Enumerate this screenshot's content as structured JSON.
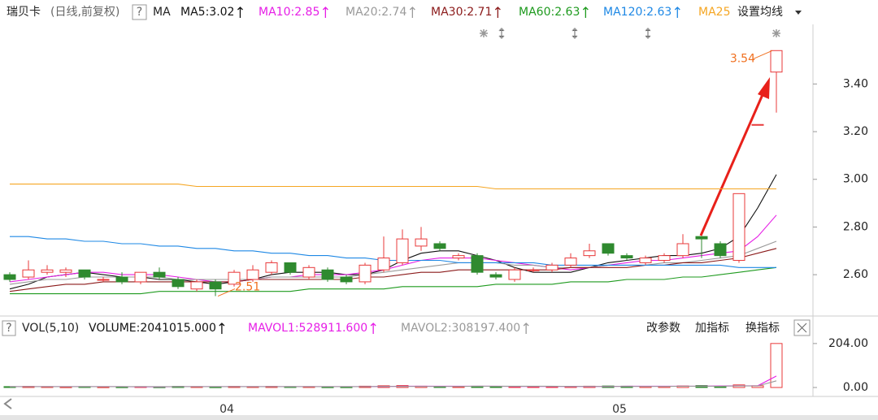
{
  "header": {
    "stock": "瑞贝卡",
    "mode": "(日线,前复权)",
    "help": "?",
    "indicator": "MA",
    "settings": "设置均线"
  },
  "chart_data": [
    {
      "type": "candlestick",
      "categories": [
        null,
        null,
        null,
        null,
        null,
        null,
        null,
        null,
        null,
        null,
        null,
        null,
        "04",
        null,
        null,
        null,
        null,
        null,
        null,
        null,
        null,
        null,
        null,
        null,
        null,
        null,
        null,
        null,
        null,
        null,
        null,
        null,
        null,
        "05",
        null,
        null,
        null,
        null,
        null,
        null,
        null,
        null
      ],
      "open": [
        2.6,
        2.59,
        2.61,
        2.61,
        2.62,
        2.58,
        2.59,
        2.57,
        2.61,
        2.58,
        2.54,
        2.57,
        2.56,
        2.58,
        2.61,
        2.65,
        2.59,
        2.62,
        2.59,
        2.57,
        2.62,
        2.65,
        2.72,
        2.73,
        2.67,
        2.68,
        2.6,
        2.58,
        2.62,
        2.62,
        2.64,
        2.68,
        2.73,
        2.68,
        2.65,
        2.66,
        2.68,
        2.76,
        2.73,
        2.66,
        3.23,
        3.45
      ],
      "high": [
        2.61,
        2.66,
        2.64,
        2.63,
        2.62,
        2.59,
        2.61,
        2.61,
        2.63,
        2.59,
        2.58,
        2.58,
        2.62,
        2.64,
        2.66,
        2.65,
        2.64,
        2.63,
        2.6,
        2.65,
        2.76,
        2.79,
        2.8,
        2.74,
        2.69,
        2.69,
        2.61,
        2.63,
        2.63,
        2.65,
        2.69,
        2.73,
        2.73,
        2.69,
        2.68,
        2.69,
        2.77,
        2.76,
        2.74,
        2.94,
        3.23,
        3.54
      ],
      "low": [
        2.57,
        2.58,
        2.6,
        2.59,
        2.58,
        2.57,
        2.56,
        2.56,
        2.58,
        2.54,
        2.53,
        2.51,
        2.55,
        2.57,
        2.6,
        2.6,
        2.58,
        2.57,
        2.56,
        2.56,
        2.61,
        2.64,
        2.7,
        2.7,
        2.66,
        2.6,
        2.58,
        2.57,
        2.61,
        2.61,
        2.63,
        2.67,
        2.68,
        2.66,
        2.64,
        2.65,
        2.67,
        2.67,
        2.67,
        2.65,
        3.23,
        3.28
      ],
      "close": [
        2.58,
        2.62,
        2.62,
        2.62,
        2.59,
        2.58,
        2.57,
        2.61,
        2.59,
        2.55,
        2.57,
        2.54,
        2.61,
        2.62,
        2.65,
        2.61,
        2.63,
        2.58,
        2.57,
        2.64,
        2.67,
        2.75,
        2.75,
        2.71,
        2.68,
        2.61,
        2.59,
        2.62,
        2.62,
        2.64,
        2.67,
        2.7,
        2.69,
        2.67,
        2.67,
        2.68,
        2.73,
        2.75,
        2.68,
        2.94,
        3.23,
        3.54
      ],
      "up_color": "#e8393a",
      "down_color": "#2f8a2f",
      "ylim": [
        2.43,
        3.65
      ],
      "yticks": [
        {
          "value": 2.6,
          "label": "2.60"
        },
        {
          "value": 2.8,
          "label": "2.80"
        },
        {
          "value": 3.0,
          "label": "3.00"
        },
        {
          "value": 3.2,
          "label": "3.20"
        },
        {
          "value": 3.4,
          "label": "3.40"
        }
      ],
      "max_label": 3.54,
      "min_label": 2.51,
      "series": [
        {
          "name": "MA5:3.02",
          "color": "#111111",
          "values": [
            2.54,
            2.56,
            2.59,
            2.6,
            2.61,
            2.6,
            2.59,
            2.59,
            2.58,
            2.58,
            2.57,
            2.56,
            2.57,
            2.58,
            2.6,
            2.61,
            2.61,
            2.61,
            2.6,
            2.6,
            2.62,
            2.66,
            2.69,
            2.7,
            2.7,
            2.68,
            2.66,
            2.63,
            2.61,
            2.61,
            2.61,
            2.63,
            2.65,
            2.66,
            2.67,
            2.68,
            2.68,
            2.69,
            2.71,
            2.76,
            2.88,
            3.02
          ]
        },
        {
          "name": "MA10:2.85",
          "color": "#e61ee6",
          "values": [
            2.57,
            2.58,
            2.59,
            2.6,
            2.61,
            2.61,
            2.6,
            2.6,
            2.6,
            2.59,
            2.58,
            2.57,
            2.57,
            2.58,
            2.59,
            2.59,
            2.6,
            2.6,
            2.6,
            2.61,
            2.62,
            2.64,
            2.66,
            2.67,
            2.67,
            2.67,
            2.66,
            2.65,
            2.64,
            2.63,
            2.62,
            2.63,
            2.64,
            2.65,
            2.66,
            2.66,
            2.67,
            2.68,
            2.69,
            2.7,
            2.76,
            2.85
          ]
        },
        {
          "name": "MA20:2.74",
          "color": "#9a9a9a",
          "values": [
            2.56,
            2.57,
            2.58,
            2.58,
            2.59,
            2.59,
            2.59,
            2.59,
            2.59,
            2.58,
            2.58,
            2.58,
            2.58,
            2.58,
            2.59,
            2.59,
            2.59,
            2.59,
            2.59,
            2.6,
            2.61,
            2.62,
            2.63,
            2.64,
            2.65,
            2.65,
            2.65,
            2.64,
            2.64,
            2.63,
            2.63,
            2.63,
            2.64,
            2.64,
            2.64,
            2.65,
            2.65,
            2.66,
            2.67,
            2.68,
            2.71,
            2.74
          ]
        },
        {
          "name": "MA30:2.71",
          "color": "#8b1a1a",
          "values": [
            2.53,
            2.54,
            2.55,
            2.56,
            2.56,
            2.57,
            2.57,
            2.57,
            2.57,
            2.57,
            2.57,
            2.57,
            2.57,
            2.58,
            2.58,
            2.58,
            2.58,
            2.58,
            2.58,
            2.59,
            2.59,
            2.6,
            2.61,
            2.61,
            2.62,
            2.62,
            2.62,
            2.62,
            2.62,
            2.62,
            2.63,
            2.63,
            2.63,
            2.63,
            2.64,
            2.64,
            2.65,
            2.65,
            2.66,
            2.67,
            2.69,
            2.71
          ]
        },
        {
          "name": "MA60:2.63",
          "color": "#1e9a1e",
          "values": [
            2.52,
            2.52,
            2.52,
            2.52,
            2.52,
            2.52,
            2.52,
            2.52,
            2.53,
            2.53,
            2.53,
            2.53,
            2.53,
            2.53,
            2.53,
            2.53,
            2.54,
            2.54,
            2.54,
            2.54,
            2.54,
            2.55,
            2.55,
            2.55,
            2.55,
            2.55,
            2.56,
            2.56,
            2.56,
            2.56,
            2.57,
            2.57,
            2.57,
            2.58,
            2.58,
            2.58,
            2.59,
            2.59,
            2.6,
            2.61,
            2.62,
            2.63
          ]
        },
        {
          "name": "MA120:2.63",
          "color": "#1e88e5",
          "values": [
            2.76,
            2.76,
            2.75,
            2.75,
            2.74,
            2.74,
            2.73,
            2.73,
            2.72,
            2.72,
            2.71,
            2.71,
            2.7,
            2.7,
            2.69,
            2.69,
            2.68,
            2.68,
            2.67,
            2.67,
            2.66,
            2.66,
            2.66,
            2.66,
            2.65,
            2.65,
            2.65,
            2.65,
            2.65,
            2.64,
            2.64,
            2.64,
            2.64,
            2.64,
            2.64,
            2.64,
            2.64,
            2.64,
            2.64,
            2.63,
            2.63,
            2.63
          ]
        },
        {
          "name": "MA25",
          "color": "#f5a623",
          "values": [
            2.98,
            2.98,
            2.98,
            2.98,
            2.98,
            2.98,
            2.98,
            2.98,
            2.98,
            2.98,
            2.97,
            2.97,
            2.97,
            2.97,
            2.97,
            2.97,
            2.97,
            2.97,
            2.97,
            2.97,
            2.97,
            2.97,
            2.97,
            2.97,
            2.97,
            2.97,
            2.96,
            2.96,
            2.96,
            2.96,
            2.96,
            2.96,
            2.96,
            2.96,
            2.96,
            2.96,
            2.96,
            2.96,
            2.96,
            2.96,
            2.96,
            2.96
          ]
        }
      ]
    },
    {
      "type": "bar",
      "indicator": "VOL(5,10)",
      "help": "?",
      "buttons": [
        "改参数",
        "加指标",
        "换指标"
      ],
      "ylim": [
        -34,
        260
      ],
      "yticks": [
        {
          "value": 0,
          "label": "0.00"
        },
        {
          "value": 204,
          "label": "204.00"
        }
      ],
      "series": [
        {
          "name": "VOLUME:2041015.000",
          "color": "#111111",
          "values": [
            4,
            5,
            4,
            3,
            4,
            3,
            3,
            4,
            3,
            5,
            4,
            3,
            5,
            4,
            5,
            4,
            4,
            3,
            3,
            6,
            8,
            9,
            6,
            5,
            4,
            6,
            5,
            4,
            4,
            4,
            5,
            6,
            7,
            6,
            5,
            5,
            7,
            9,
            6,
            12,
            8,
            204.1015
          ]
        },
        {
          "name": "MAVOL1:528911.600",
          "color": "#e61ee6",
          "values": [
            4,
            4,
            4,
            4,
            4,
            4,
            4,
            3,
            3,
            4,
            4,
            4,
            4,
            4,
            4,
            4,
            4,
            4,
            4,
            4,
            5,
            6,
            6,
            6,
            6,
            6,
            6,
            5,
            5,
            5,
            5,
            5,
            5,
            6,
            6,
            6,
            6,
            6,
            7,
            8,
            8,
            52.89
          ]
        },
        {
          "name": "MAVOL2:308197.400",
          "color": "#9a9a9a",
          "values": [
            4,
            4,
            4,
            4,
            4,
            4,
            4,
            4,
            4,
            4,
            4,
            4,
            4,
            4,
            4,
            4,
            4,
            4,
            4,
            4,
            5,
            5,
            5,
            5,
            5,
            6,
            6,
            6,
            6,
            6,
            5,
            5,
            5,
            5,
            5,
            5,
            6,
            6,
            6,
            7,
            7,
            30.82
          ]
        }
      ]
    }
  ]
}
